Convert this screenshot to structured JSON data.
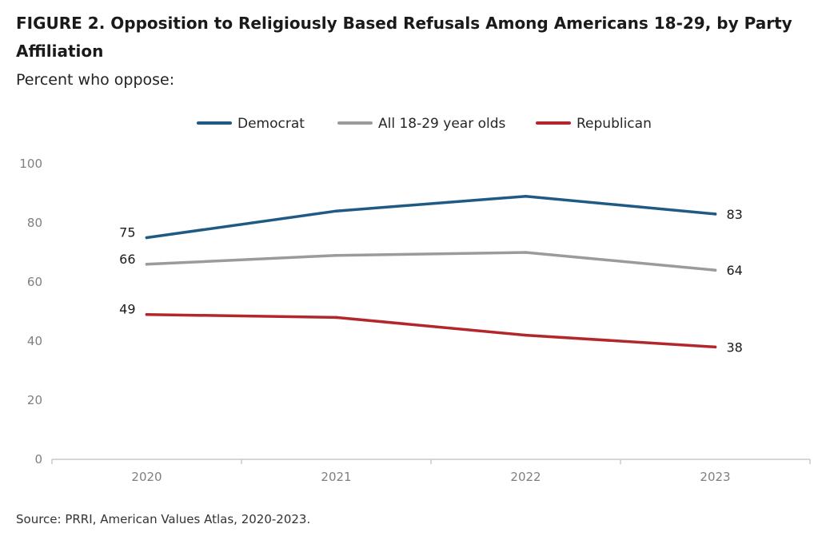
{
  "figure": {
    "title": "FIGURE 2.  Opposition to Religiously Based Refusals Among Americans 18-29, by Party Affiliation",
    "subtitle": "Percent who oppose:",
    "source": "Source: PRRI, American Values Atlas, 2020-2023."
  },
  "chart_data": {
    "type": "line",
    "title": "FIGURE 2.  Opposition to Religiously Based Refusals Among Americans 18-29, by Party Affiliation",
    "subtitle": "Percent who oppose:",
    "xlabel": "",
    "ylabel": "",
    "x": [
      "2020",
      "2021",
      "2022",
      "2023"
    ],
    "ylim": [
      0,
      100
    ],
    "yticks": [
      "0",
      "20",
      "40",
      "60",
      "80",
      "100"
    ],
    "grid": false,
    "legend_position": "top-center",
    "series": [
      {
        "name": "Democrat",
        "color": "#1f5a85",
        "values": [
          75,
          84,
          89,
          83
        ],
        "labels": [
          "75",
          "",
          "",
          "83"
        ]
      },
      {
        "name": "All 18-29 year olds",
        "color": "#9b9b9b",
        "values": [
          66,
          69,
          70,
          64
        ],
        "labels": [
          "66",
          "",
          "",
          "64"
        ]
      },
      {
        "name": "Republican",
        "color": "#b3262c",
        "values": [
          49,
          48,
          42,
          38
        ],
        "labels": [
          "49",
          "",
          "",
          "38"
        ]
      }
    ]
  }
}
